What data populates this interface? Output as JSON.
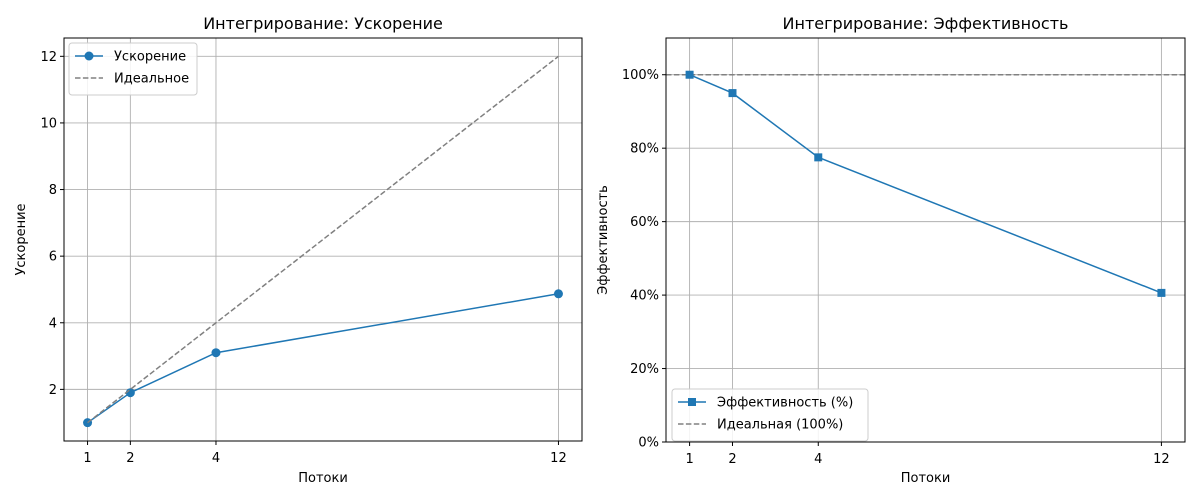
{
  "chart_data": [
    {
      "type": "line",
      "title": "Интегрирование: Ускорение",
      "xlabel": "Потоки",
      "ylabel": "Ускорение",
      "x": [
        1,
        2,
        4,
        12
      ],
      "x_ticks": [
        "1",
        "2",
        "4",
        "12"
      ],
      "xlim": [
        0.45,
        12.55
      ],
      "ylim": [
        0.45,
        12.55
      ],
      "y_ticks": [
        2,
        4,
        6,
        8,
        10,
        12
      ],
      "y_tick_labels": [
        "2",
        "4",
        "6",
        "8",
        "10",
        "12"
      ],
      "grid": true,
      "legend_position": "top-left",
      "series": [
        {
          "name": "Ускорение",
          "values": [
            1.0,
            1.9,
            3.1,
            4.87
          ],
          "color": "#1f77b4",
          "style": "solid",
          "marker": "circle"
        },
        {
          "name": "Идеальное",
          "values": [
            1,
            2,
            4,
            12
          ],
          "color": "#808080",
          "style": "dashed",
          "marker": "none"
        }
      ]
    },
    {
      "type": "line",
      "title": "Интегрирование: Эффективность",
      "xlabel": "Потоки",
      "ylabel": "Эффективность",
      "x": [
        1,
        2,
        4,
        12
      ],
      "x_ticks": [
        "1",
        "2",
        "4",
        "12"
      ],
      "xlim": [
        0.45,
        12.55
      ],
      "ylim": [
        0,
        110
      ],
      "y_ticks": [
        0,
        20,
        40,
        60,
        80,
        100
      ],
      "y_tick_labels": [
        "0%",
        "20%",
        "40%",
        "60%",
        "80%",
        "100%"
      ],
      "grid": true,
      "legend_position": "bottom-left",
      "series": [
        {
          "name": "Эффективность (%)",
          "values": [
            100,
            95,
            77.5,
            40.6
          ],
          "color": "#1f77b4",
          "style": "solid",
          "marker": "square"
        }
      ],
      "reference_lines": [
        {
          "name": "Идеальная (100%)",
          "y": 100,
          "color": "#808080",
          "style": "dashed"
        }
      ]
    }
  ]
}
